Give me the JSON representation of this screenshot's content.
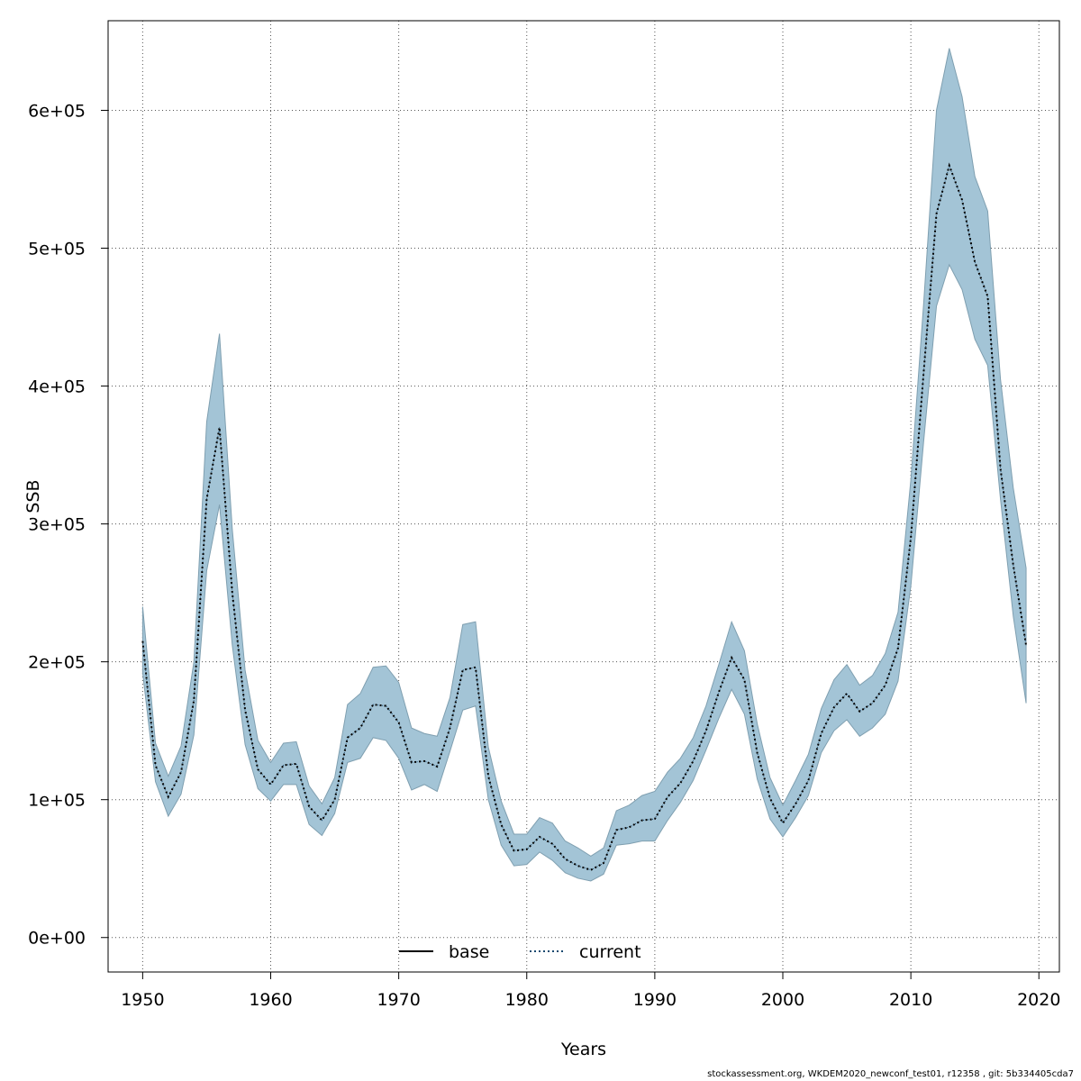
{
  "chart_data": {
    "type": "line",
    "title": "",
    "xlabel": "Years",
    "ylabel": "SSB",
    "xlim": [
      1947.3,
      2021.6
    ],
    "ylim": [
      -25000,
      665000
    ],
    "x_ticks": [
      1950,
      1960,
      1970,
      1980,
      1990,
      2000,
      2010,
      2020
    ],
    "x_tick_labels": [
      "1950",
      "1960",
      "1970",
      "1980",
      "1990",
      "2000",
      "2010",
      "2020"
    ],
    "y_ticks": [
      0,
      100000,
      200000,
      300000,
      400000,
      500000,
      600000
    ],
    "y_tick_labels": [
      "0e+00",
      "1e+05",
      "2e+05",
      "3e+05",
      "4e+05",
      "5e+05",
      "6e+05"
    ],
    "grid": true,
    "legend_position": "bottom-center",
    "band_color": "#a3c4d6",
    "band_edge_color": "#7f9fb0",
    "base_color": "#000000",
    "current_color": "#1a4a70",
    "x": [
      1950,
      1951,
      1952,
      1953,
      1954,
      1955,
      1956,
      1957,
      1958,
      1959,
      1960,
      1961,
      1962,
      1963,
      1964,
      1965,
      1966,
      1967,
      1968,
      1969,
      1970,
      1971,
      1972,
      1973,
      1974,
      1975,
      1976,
      1977,
      1978,
      1979,
      1980,
      1981,
      1982,
      1983,
      1984,
      1985,
      1986,
      1987,
      1988,
      1989,
      1990,
      1991,
      1992,
      1993,
      1994,
      1995,
      1996,
      1997,
      1998,
      1999,
      2000,
      2001,
      2002,
      2003,
      2004,
      2005,
      2006,
      2007,
      2008,
      2009,
      2010,
      2011,
      2012,
      2013,
      2014,
      2015,
      2016,
      2017,
      2018,
      2019
    ],
    "series": [
      {
        "name": "base",
        "style": "solid",
        "values": [
          215000,
          125000,
          102000,
          120000,
          172000,
          318000,
          370000,
          250000,
          165000,
          122000,
          111000,
          125000,
          126000,
          95000,
          85000,
          100000,
          145000,
          152000,
          169000,
          168000,
          156000,
          127000,
          128000,
          124000,
          152000,
          194000,
          196000,
          117000,
          82000,
          63000,
          64000,
          73000,
          68000,
          57000,
          52000,
          49000,
          54000,
          78000,
          80000,
          85000,
          86000,
          102000,
          112000,
          128000,
          150000,
          178000,
          203000,
          187000,
          134000,
          101000,
          83000,
          97000,
          114000,
          148000,
          167000,
          177000,
          164000,
          170000,
          183000,
          210000,
          290000,
          410000,
          525000,
          560000,
          535000,
          490000,
          465000,
          340000,
          270000,
          212000
        ]
      },
      {
        "name": "current",
        "style": "dotted",
        "values": [
          215000,
          125000,
          102000,
          120000,
          172000,
          318000,
          370000,
          250000,
          165000,
          122000,
          111000,
          125000,
          126000,
          95000,
          85000,
          100000,
          145000,
          152000,
          169000,
          168000,
          156000,
          127000,
          128000,
          124000,
          152000,
          194000,
          196000,
          117000,
          82000,
          63000,
          64000,
          73000,
          68000,
          57000,
          52000,
          49000,
          54000,
          78000,
          80000,
          85000,
          86000,
          102000,
          112000,
          128000,
          150000,
          178000,
          203000,
          187000,
          134000,
          101000,
          83000,
          97000,
          114000,
          148000,
          167000,
          177000,
          164000,
          170000,
          183000,
          210000,
          290000,
          410000,
          525000,
          560000,
          535000,
          490000,
          465000,
          340000,
          270000,
          212000
        ]
      }
    ],
    "band": {
      "lower": [
        192000,
        113000,
        88000,
        104000,
        147000,
        266000,
        314000,
        212000,
        140000,
        108000,
        99000,
        111000,
        111000,
        82000,
        74000,
        90000,
        127000,
        130000,
        145000,
        143000,
        130000,
        107000,
        111000,
        106000,
        135000,
        165000,
        168000,
        100000,
        67000,
        52000,
        53000,
        62000,
        56000,
        47000,
        43000,
        41000,
        46000,
        67000,
        68000,
        70000,
        70000,
        85000,
        98000,
        114000,
        136000,
        159000,
        180000,
        162000,
        115000,
        86000,
        73000,
        87000,
        103000,
        134000,
        150000,
        158000,
        146000,
        152000,
        162000,
        186000,
        255000,
        360000,
        458000,
        488000,
        470000,
        434000,
        415000,
        318000,
        233000,
        170000
      ],
      "upper": [
        240000,
        141000,
        117000,
        139000,
        200000,
        374000,
        438000,
        296000,
        194000,
        143000,
        127000,
        141000,
        142000,
        110000,
        97000,
        116000,
        169000,
        177000,
        196000,
        197000,
        185000,
        152000,
        148000,
        146000,
        174000,
        227000,
        229000,
        138000,
        99000,
        75000,
        75000,
        87000,
        83000,
        70000,
        65000,
        59000,
        65000,
        92000,
        96000,
        103000,
        106000,
        120000,
        130000,
        145000,
        168000,
        198000,
        229000,
        208000,
        155000,
        116000,
        96000,
        114000,
        133000,
        166000,
        187000,
        198000,
        183000,
        190000,
        206000,
        236000,
        332000,
        460000,
        600000,
        645000,
        610000,
        552000,
        527000,
        405000,
        326000,
        268000
      ]
    }
  },
  "footer": "stockassessment.org, WKDEM2020_newconf_test01, r12358 , git: 5b334405cda7"
}
